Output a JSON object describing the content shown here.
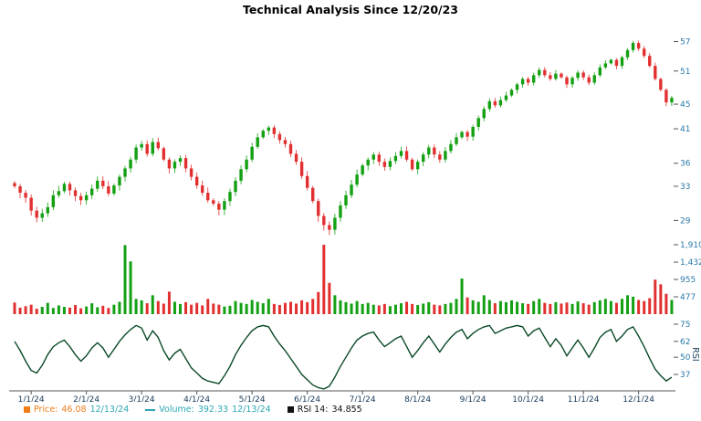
{
  "title": "Technical Analysis Since 12/20/23",
  "colors": {
    "up": "#13a013",
    "down": "#e23030",
    "axis_text": "#2979a8",
    "date_text": "#173a5a",
    "rsi_line": "#0a4a26",
    "axis_line": "#555555",
    "legend_date": "#2ba7b5"
  },
  "chart_data": [
    {
      "type": "candlestick",
      "name": "Price",
      "title": "Technical Analysis Since 12/20/23",
      "scale": "log",
      "ylim": [
        27.2,
        58.5
      ],
      "x_tick_labels": [
        "1/1/24",
        "2/1/24",
        "3/1/24",
        "4/1/24",
        "5/1/24",
        "6/1/24",
        "7/1/24",
        "8/1/24",
        "9/1/24",
        "10/1/24",
        "11/1/24",
        "12/1/24"
      ],
      "y_tick_labels": [
        "57",
        "51",
        "45",
        "41",
        "36",
        "33",
        "29"
      ],
      "y_tick_values": [
        57,
        51,
        45,
        41,
        36,
        33,
        29
      ],
      "first_open": 33.4,
      "closes": [
        33.0,
        32.2,
        31.6,
        30.1,
        29.3,
        29.8,
        30.5,
        31.9,
        32.4,
        33.3,
        32.5,
        31.8,
        31.3,
        31.9,
        32.7,
        33.7,
        33.0,
        32.1,
        33.1,
        34.2,
        35.3,
        36.5,
        38.2,
        38.7,
        37.3,
        39.0,
        38.1,
        36.5,
        35.3,
        36.2,
        36.7,
        35.3,
        34.2,
        33.1,
        32.2,
        31.3,
        30.9,
        30.2,
        31.2,
        32.3,
        33.7,
        35.2,
        36.5,
        38.3,
        39.7,
        40.7,
        41.2,
        40.2,
        39.3,
        38.7,
        37.3,
        36.2,
        34.3,
        32.8,
        31.2,
        29.5,
        28.5,
        28.0,
        29.3,
        30.7,
        31.9,
        33.2,
        34.5,
        35.7,
        36.5,
        37.2,
        36.2,
        35.5,
        36.3,
        37.0,
        37.7,
        36.5,
        35.2,
        36.2,
        37.2,
        38.2,
        37.2,
        36.5,
        37.7,
        38.7,
        39.7,
        40.5,
        39.8,
        41.3,
        42.7,
        44.2,
        45.5,
        44.8,
        45.7,
        46.5,
        47.5,
        48.5,
        49.5,
        48.8,
        50.2,
        51.2,
        50.2,
        49.5,
        50.5,
        49.8,
        48.5,
        49.7,
        50.7,
        49.8,
        48.8,
        50.2,
        51.7,
        52.5,
        53.2,
        52.0,
        53.7,
        55.2,
        56.7,
        55.5,
        54.0,
        52.0,
        49.5,
        47.5,
        45.3,
        46.08
      ],
      "last": {
        "value": "46.08",
        "date": "12/13/24"
      }
    },
    {
      "type": "bar",
      "name": "Volume",
      "ylim": [
        0,
        2000
      ],
      "y_tick_labels": [
        "1,910",
        "1,432",
        "955",
        "477"
      ],
      "y_tick_values": [
        1910,
        1432,
        955,
        477
      ],
      "values": [
        320,
        180,
        220,
        260,
        150,
        200,
        310,
        170,
        240,
        200,
        180,
        250,
        160,
        210,
        300,
        190,
        230,
        170,
        260,
        340,
        1900,
        1450,
        420,
        380,
        300,
        520,
        360,
        290,
        620,
        340,
        280,
        330,
        260,
        310,
        240,
        420,
        290,
        260,
        210,
        230,
        360,
        310,
        280,
        390,
        340,
        300,
        420,
        280,
        250,
        310,
        340,
        290,
        380,
        330,
        420,
        610,
        1910,
        860,
        520,
        380,
        330,
        290,
        360,
        280,
        310,
        260,
        240,
        280,
        220,
        260,
        300,
        340,
        280,
        250,
        290,
        330,
        260,
        240,
        280,
        310,
        420,
        980,
        460,
        380,
        340,
        520,
        390,
        300,
        360,
        330,
        380,
        340,
        300,
        280,
        360,
        420,
        310,
        280,
        330,
        290,
        320,
        280,
        350,
        300,
        260,
        330,
        380,
        420,
        360,
        310,
        420,
        520,
        480,
        390,
        360,
        440,
        950,
        820,
        560,
        392.33
      ],
      "last": {
        "value": "392.33",
        "date": "12/13/24"
      }
    },
    {
      "type": "line",
      "name": "RSI",
      "ylabel": "RSI",
      "period_label": "RSI 14",
      "ylim": [
        25,
        80
      ],
      "y_tick_labels": [
        "75",
        "62",
        "50",
        "37"
      ],
      "y_tick_values": [
        75,
        62,
        50,
        37
      ],
      "values": [
        62,
        55,
        47,
        40,
        38,
        44,
        52,
        58,
        61,
        63,
        58,
        52,
        47,
        51,
        57,
        61,
        57,
        50,
        56,
        62,
        67,
        71,
        74,
        72,
        63,
        70,
        65,
        55,
        48,
        53,
        56,
        49,
        42,
        38,
        34,
        32,
        31,
        30,
        36,
        43,
        52,
        59,
        65,
        70,
        73,
        74,
        73,
        66,
        60,
        55,
        49,
        43,
        37,
        33,
        29,
        27,
        26,
        28,
        35,
        43,
        50,
        57,
        63,
        66,
        68,
        69,
        63,
        58,
        61,
        64,
        66,
        58,
        50,
        55,
        61,
        66,
        60,
        54,
        60,
        65,
        69,
        71,
        64,
        68,
        71,
        73,
        74,
        68,
        70,
        72,
        73,
        74,
        73,
        66,
        70,
        72,
        65,
        58,
        64,
        59,
        51,
        57,
        63,
        57,
        50,
        57,
        65,
        69,
        71,
        62,
        66,
        71,
        73,
        66,
        58,
        49,
        41,
        36,
        32,
        34.855
      ],
      "last": {
        "value": "34.855"
      }
    }
  ],
  "legend": {
    "items": [
      {
        "label": "Price:",
        "value": "46.08",
        "date": "12/13/24",
        "marker": "square",
        "color": "#ef7d1a"
      },
      {
        "label": "Volume:",
        "value": "392.33",
        "date": "12/13/24",
        "marker": "line",
        "color": "#2ba7b5"
      },
      {
        "label": "RSI 14:",
        "value": "34.855",
        "date": "",
        "marker": "square",
        "color": "#111111"
      }
    ]
  }
}
